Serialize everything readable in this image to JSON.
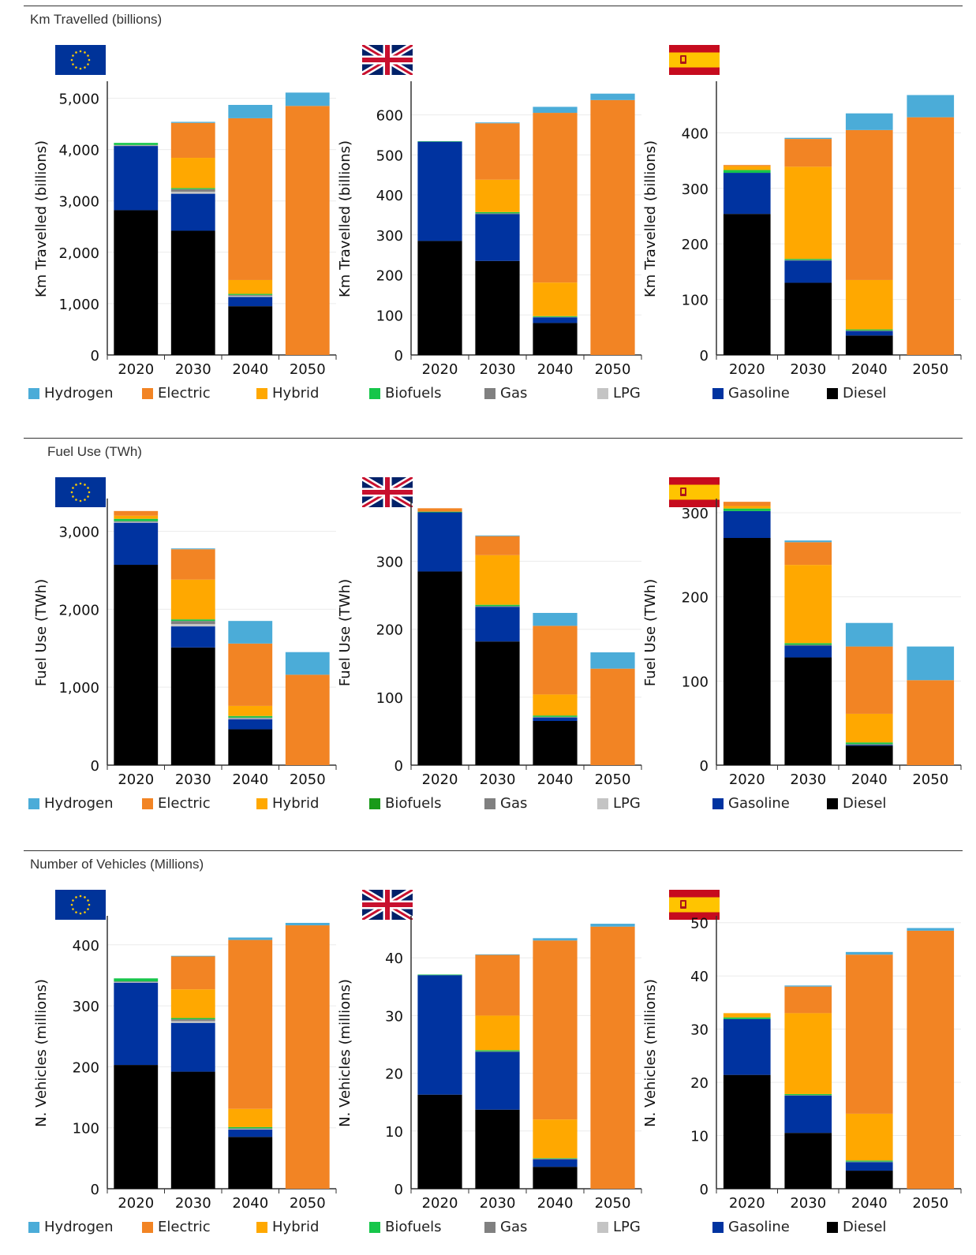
{
  "sections": [
    {
      "title": "Km Travelled (billions)",
      "ylabel": "Km Travelled (billions)",
      "legend": [
        {
          "label": "Hydrogen",
          "color": "#4bacd8"
        },
        {
          "label": "Electric",
          "color": "#f28424"
        },
        {
          "label": "Hybrid",
          "color": "#ffa800"
        },
        {
          "label": "Biofuels",
          "color": "#16c64a"
        },
        {
          "label": "Gas",
          "color": "#808080"
        },
        {
          "label": "LPG",
          "color": "#c4c4c4"
        },
        {
          "label": "Gasoline",
          "color": "#0033a0"
        },
        {
          "label": "Diesel",
          "color": "#000000"
        }
      ]
    },
    {
      "title": "Fuel Use (TWh)",
      "ylabel": "Fuel Use (TWh)",
      "legend": [
        {
          "label": "Hydrogen",
          "color": "#4bacd8"
        },
        {
          "label": "Electric",
          "color": "#f28424"
        },
        {
          "label": "Hybrid",
          "color": "#ffa800"
        },
        {
          "label": "Biofuels",
          "color": "#1a9a1a"
        },
        {
          "label": "Gas",
          "color": "#808080"
        },
        {
          "label": "LPG",
          "color": "#c4c4c4"
        },
        {
          "label": "Gasoline",
          "color": "#0033a0"
        },
        {
          "label": "Diesel",
          "color": "#000000"
        }
      ]
    },
    {
      "title": "Number of Vehicles (Millions)",
      "ylabel": "N. Vehicles (millions)",
      "legend": [
        {
          "label": "Hydrogen",
          "color": "#4bacd8"
        },
        {
          "label": "Electric",
          "color": "#f28424"
        },
        {
          "label": "Hybrid",
          "color": "#ffa800"
        },
        {
          "label": "Biofuels",
          "color": "#16c64a"
        },
        {
          "label": "Gas",
          "color": "#808080"
        },
        {
          "label": "LPG",
          "color": "#c4c4c4"
        },
        {
          "label": "Gasoline",
          "color": "#0033a0"
        },
        {
          "label": "Diesel",
          "color": "#000000"
        }
      ]
    }
  ],
  "chart_data": [
    {
      "type": "bar",
      "stacked": true,
      "region": "EU",
      "categories": [
        "2020",
        "2030",
        "2040",
        "2050"
      ],
      "ylim": [
        0,
        5300
      ],
      "yticks": [
        0,
        1000,
        2000,
        3000,
        4000,
        5000
      ],
      "tick_labels": [
        "0",
        "1,000",
        "2,000",
        "3,000",
        "4,000",
        "5,000"
      ],
      "series": [
        {
          "name": "Diesel",
          "values": [
            2820,
            2420,
            950,
            0
          ]
        },
        {
          "name": "Gasoline",
          "values": [
            1250,
            720,
            180,
            0
          ]
        },
        {
          "name": "LPG",
          "values": [
            10,
            40,
            20,
            0
          ]
        },
        {
          "name": "Gas",
          "values": [
            10,
            50,
            20,
            0
          ]
        },
        {
          "name": "Biofuels",
          "values": [
            40,
            20,
            20,
            0
          ]
        },
        {
          "name": "Hybrid",
          "values": [
            0,
            590,
            270,
            0
          ]
        },
        {
          "name": "Electric",
          "values": [
            0,
            680,
            3150,
            4850
          ]
        },
        {
          "name": "Hydrogen",
          "values": [
            0,
            20,
            260,
            260
          ]
        }
      ]
    },
    {
      "type": "bar",
      "stacked": true,
      "region": "UK",
      "categories": [
        "2020",
        "2030",
        "2040",
        "2050"
      ],
      "ylim": [
        0,
        680
      ],
      "yticks": [
        0,
        100,
        200,
        300,
        400,
        500,
        600
      ],
      "tick_labels": [
        "0",
        "100",
        "200",
        "300",
        "400",
        "500",
        "600"
      ],
      "series": [
        {
          "name": "Diesel",
          "values": [
            285,
            235,
            80,
            0
          ]
        },
        {
          "name": "Gasoline",
          "values": [
            248,
            117,
            14,
            0
          ]
        },
        {
          "name": "LPG",
          "values": [
            0,
            0,
            0,
            0
          ]
        },
        {
          "name": "Gas",
          "values": [
            0,
            2,
            1,
            0
          ]
        },
        {
          "name": "Biofuels",
          "values": [
            1,
            3,
            2,
            0
          ]
        },
        {
          "name": "Hybrid",
          "values": [
            0,
            81,
            84,
            0
          ]
        },
        {
          "name": "Electric",
          "values": [
            0,
            141,
            424,
            637
          ]
        },
        {
          "name": "Hydrogen",
          "values": [
            0,
            2,
            15,
            16
          ]
        }
      ]
    },
    {
      "type": "bar",
      "stacked": true,
      "region": "ES",
      "categories": [
        "2020",
        "2030",
        "2040",
        "2050"
      ],
      "ylim": [
        0,
        490
      ],
      "yticks": [
        0,
        100,
        200,
        300,
        400
      ],
      "tick_labels": [
        "0",
        "100",
        "200",
        "300",
        "400"
      ],
      "series": [
        {
          "name": "Diesel",
          "values": [
            254,
            130,
            35,
            0
          ]
        },
        {
          "name": "Gasoline",
          "values": [
            74,
            40,
            8,
            0
          ]
        },
        {
          "name": "LPG",
          "values": [
            0,
            0,
            0,
            0
          ]
        },
        {
          "name": "Gas",
          "values": [
            0,
            1,
            1,
            0
          ]
        },
        {
          "name": "Biofuels",
          "values": [
            5,
            2,
            2,
            0
          ]
        },
        {
          "name": "Hybrid",
          "values": [
            7,
            166,
            89,
            0
          ]
        },
        {
          "name": "Electric",
          "values": [
            2,
            50,
            270,
            428
          ]
        },
        {
          "name": "Hydrogen",
          "values": [
            0,
            2,
            30,
            40
          ]
        }
      ]
    },
    {
      "type": "bar",
      "stacked": true,
      "region": "EU",
      "categories": [
        "2020",
        "2030",
        "2040",
        "2050"
      ],
      "ylim": [
        0,
        3400
      ],
      "yticks": [
        0,
        1000,
        2000,
        3000
      ],
      "tick_labels": [
        "0",
        "1,000",
        "2,000",
        "3,000"
      ],
      "series": [
        {
          "name": "Diesel",
          "values": [
            2570,
            1510,
            460,
            0
          ]
        },
        {
          "name": "Gasoline",
          "values": [
            540,
            270,
            130,
            0
          ]
        },
        {
          "name": "LPG",
          "values": [
            10,
            30,
            10,
            0
          ]
        },
        {
          "name": "Gas",
          "values": [
            10,
            40,
            10,
            0
          ]
        },
        {
          "name": "Biofuels",
          "values": [
            30,
            20,
            20,
            0
          ]
        },
        {
          "name": "Hybrid",
          "values": [
            40,
            510,
            130,
            0
          ]
        },
        {
          "name": "Electric",
          "values": [
            60,
            390,
            800,
            1160
          ]
        },
        {
          "name": "Hydrogen",
          "values": [
            0,
            10,
            290,
            290
          ]
        }
      ]
    },
    {
      "type": "bar",
      "stacked": true,
      "region": "UK",
      "categories": [
        "2020",
        "2030",
        "2040",
        "2050"
      ],
      "ylim": [
        0,
        390
      ],
      "yticks": [
        0,
        100,
        200,
        300
      ],
      "tick_labels": [
        "0",
        "100",
        "200",
        "300"
      ],
      "series": [
        {
          "name": "Diesel",
          "values": [
            285,
            182,
            65,
            0
          ]
        },
        {
          "name": "Gasoline",
          "values": [
            87,
            51,
            5,
            0
          ]
        },
        {
          "name": "LPG",
          "values": [
            0,
            0,
            0,
            0
          ]
        },
        {
          "name": "Gas",
          "values": [
            0,
            1,
            1,
            0
          ]
        },
        {
          "name": "Biofuels",
          "values": [
            1,
            2,
            2,
            0
          ]
        },
        {
          "name": "Hybrid",
          "values": [
            0,
            73,
            31,
            0
          ]
        },
        {
          "name": "Electric",
          "values": [
            5,
            28,
            101,
            142
          ]
        },
        {
          "name": "Hydrogen",
          "values": [
            0,
            1,
            19,
            24
          ]
        }
      ]
    },
    {
      "type": "bar",
      "stacked": true,
      "region": "ES",
      "categories": [
        "2020",
        "2030",
        "2040",
        "2050"
      ],
      "ylim": [
        0,
        315
      ],
      "yticks": [
        0,
        100,
        200,
        300
      ],
      "tick_labels": [
        "0",
        "100",
        "200",
        "300"
      ],
      "series": [
        {
          "name": "Diesel",
          "values": [
            270,
            128,
            23,
            0
          ]
        },
        {
          "name": "Gasoline",
          "values": [
            32,
            14,
            1,
            0
          ]
        },
        {
          "name": "LPG",
          "values": [
            0,
            0,
            0,
            0
          ]
        },
        {
          "name": "Gas",
          "values": [
            0,
            1,
            1,
            0
          ]
        },
        {
          "name": "Biofuels",
          "values": [
            3,
            2,
            2,
            0
          ]
        },
        {
          "name": "Hybrid",
          "values": [
            3,
            93,
            34,
            0
          ]
        },
        {
          "name": "Electric",
          "values": [
            5,
            27,
            80,
            101
          ]
        },
        {
          "name": "Hydrogen",
          "values": [
            0,
            2,
            28,
            40
          ]
        }
      ]
    },
    {
      "type": "bar",
      "stacked": true,
      "region": "EU",
      "categories": [
        "2020",
        "2030",
        "2040",
        "2050"
      ],
      "ylim": [
        0,
        445
      ],
      "yticks": [
        0,
        100,
        200,
        300,
        400
      ],
      "tick_labels": [
        "0",
        "100",
        "200",
        "300",
        "400"
      ],
      "series": [
        {
          "name": "Diesel",
          "values": [
            203,
            192,
            85,
            0
          ]
        },
        {
          "name": "Gasoline",
          "values": [
            135,
            80,
            12,
            0
          ]
        },
        {
          "name": "LPG",
          "values": [
            1,
            3,
            1,
            0
          ]
        },
        {
          "name": "Gas",
          "values": [
            1,
            3,
            1,
            0
          ]
        },
        {
          "name": "Biofuels",
          "values": [
            5,
            2,
            2,
            0
          ]
        },
        {
          "name": "Hybrid",
          "values": [
            0,
            47,
            30,
            0
          ]
        },
        {
          "name": "Electric",
          "values": [
            0,
            54,
            277,
            432
          ]
        },
        {
          "name": "Hydrogen",
          "values": [
            0,
            1,
            4,
            4
          ]
        }
      ]
    },
    {
      "type": "bar",
      "stacked": true,
      "region": "UK",
      "categories": [
        "2020",
        "2030",
        "2040",
        "2050"
      ],
      "ylim": [
        0,
        47
      ],
      "yticks": [
        0,
        10,
        20,
        30,
        40
      ],
      "tick_labels": [
        "0",
        "10",
        "20",
        "30",
        "40"
      ],
      "series": [
        {
          "name": "Diesel",
          "values": [
            16.3,
            13.7,
            3.8,
            0
          ]
        },
        {
          "name": "Gasoline",
          "values": [
            20.7,
            10.0,
            1.3,
            0
          ]
        },
        {
          "name": "LPG",
          "values": [
            0,
            0,
            0,
            0
          ]
        },
        {
          "name": "Gas",
          "values": [
            0,
            0.1,
            0.1,
            0
          ]
        },
        {
          "name": "Biofuels",
          "values": [
            0.1,
            0.2,
            0.1,
            0
          ]
        },
        {
          "name": "Hybrid",
          "values": [
            0,
            6.0,
            6.7,
            0
          ]
        },
        {
          "name": "Electric",
          "values": [
            0,
            10.5,
            31.0,
            45.4
          ]
        },
        {
          "name": "Hydrogen",
          "values": [
            0,
            0.1,
            0.4,
            0.5
          ]
        }
      ]
    },
    {
      "type": "bar",
      "stacked": true,
      "region": "ES",
      "categories": [
        "2020",
        "2030",
        "2040",
        "2050"
      ],
      "ylim": [
        0,
        51
      ],
      "yticks": [
        0,
        10,
        20,
        30,
        40,
        50
      ],
      "tick_labels": [
        "0",
        "10",
        "20",
        "30",
        "40",
        "50"
      ],
      "series": [
        {
          "name": "Diesel",
          "values": [
            21.4,
            10.5,
            3.4,
            0
          ]
        },
        {
          "name": "Gasoline",
          "values": [
            10.5,
            7.0,
            1.6,
            0
          ]
        },
        {
          "name": "LPG",
          "values": [
            0,
            0,
            0,
            0
          ]
        },
        {
          "name": "Gas",
          "values": [
            0,
            0.1,
            0.1,
            0
          ]
        },
        {
          "name": "Biofuels",
          "values": [
            0.3,
            0.2,
            0.2,
            0
          ]
        },
        {
          "name": "Hybrid",
          "values": [
            0.8,
            15.2,
            8.8,
            0
          ]
        },
        {
          "name": "Electric",
          "values": [
            0,
            5.0,
            29.9,
            48.5
          ]
        },
        {
          "name": "Hydrogen",
          "values": [
            0,
            0.2,
            0.5,
            0.5
          ]
        }
      ]
    }
  ],
  "colors": {
    "Hydrogen": "#4bacd8",
    "Electric": "#f28424",
    "Hybrid": "#ffa800",
    "Biofuels": "#16c64a",
    "Gas": "#808080",
    "LPG": "#c4c4c4",
    "Gasoline": "#0033a0",
    "Diesel": "#000000"
  },
  "flags": {
    "EU": "eu-flag-icon",
    "UK": "uk-flag-icon",
    "ES": "spain-flag-icon"
  }
}
